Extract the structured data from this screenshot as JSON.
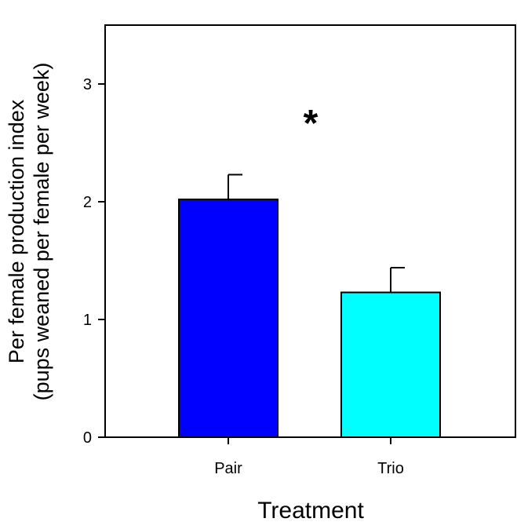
{
  "chart_data": {
    "type": "bar",
    "title": "",
    "xlabel": "Treatment",
    "ylabel_line1": "Per female production index",
    "ylabel_line2": "(pups weaned per female per week)",
    "categories": [
      "Pair",
      "Trio"
    ],
    "values": [
      2.02,
      1.23
    ],
    "errors": [
      0.21,
      0.21
    ],
    "colors": [
      "#0000ff",
      "#00ffff"
    ],
    "ylim": [
      0,
      3.5
    ],
    "yticks": [
      "0",
      "1",
      "2",
      "3"
    ],
    "grid": false,
    "annotation": "*"
  }
}
